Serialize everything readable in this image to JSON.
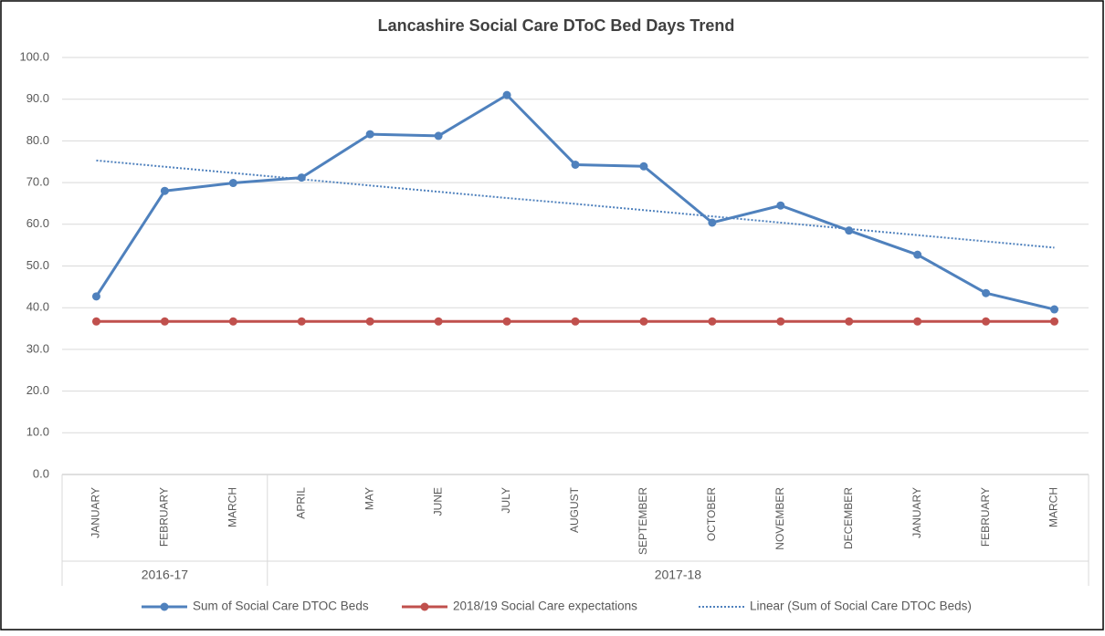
{
  "chart_data": {
    "type": "line",
    "title": "Lancashire Social Care DToC Bed Days Trend",
    "groups": [
      {
        "label": "2016-17",
        "categories": [
          "JANUARY",
          "FEBRUARY",
          "MARCH"
        ]
      },
      {
        "label": "2017-18",
        "categories": [
          "APRIL",
          "MAY",
          "JUNE",
          "JULY",
          "AUGUST",
          "SEPTEMBER",
          "OCTOBER",
          "NOVEMBER",
          "DECEMBER",
          "JANUARY",
          "FEBRUARY",
          "MARCH"
        ]
      }
    ],
    "series": [
      {
        "name": "Sum of Social Care DTOC Beds",
        "color": "#4f81bd",
        "style": "solid",
        "markers": true,
        "values": [
          42.7,
          68.0,
          69.9,
          71.2,
          81.6,
          81.2,
          91.0,
          74.3,
          73.9,
          60.4,
          64.5,
          58.5,
          52.7,
          43.5,
          39.6
        ]
      },
      {
        "name": "2018/19 Social Care expectations",
        "color": "#c0504d",
        "style": "solid",
        "markers": true,
        "values": [
          36.7,
          36.7,
          36.7,
          36.7,
          36.7,
          36.7,
          36.7,
          36.7,
          36.7,
          36.7,
          36.7,
          36.7,
          36.7,
          36.7,
          36.7
        ]
      },
      {
        "name": "Linear (Sum of Social Care DTOC Beds)",
        "color": "#4f81bd",
        "style": "dotted",
        "markers": false,
        "values": [
          75.3,
          73.8,
          72.3,
          70.8,
          69.3,
          67.8,
          66.3,
          64.9,
          63.4,
          61.9,
          60.4,
          58.9,
          57.4,
          55.9,
          54.4
        ]
      }
    ],
    "ylim": [
      0,
      100
    ],
    "yticks": [
      {
        "value": 0,
        "label": "0.0"
      },
      {
        "value": 10,
        "label": "10.0"
      },
      {
        "value": 20,
        "label": "20.0"
      },
      {
        "value": 30,
        "label": "30.0"
      },
      {
        "value": 40,
        "label": "40.0"
      },
      {
        "value": 50,
        "label": "50.0"
      },
      {
        "value": 60,
        "label": "60.0"
      },
      {
        "value": 70,
        "label": "70.0"
      },
      {
        "value": 80,
        "label": "80.0"
      },
      {
        "value": 90,
        "label": "90.0"
      },
      {
        "value": 100,
        "label": "100.0"
      }
    ],
    "grid": true,
    "legend": "bottom"
  }
}
